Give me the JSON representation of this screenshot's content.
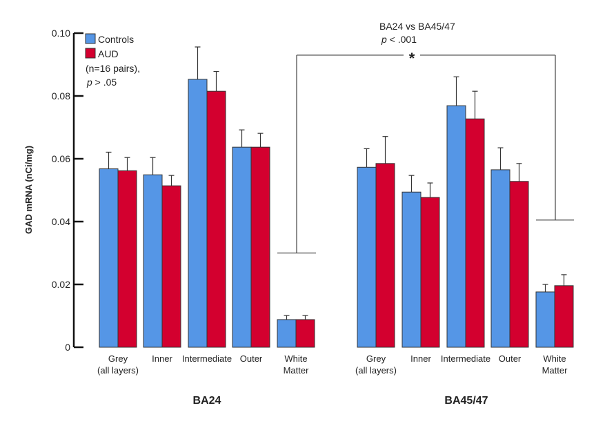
{
  "chart_data": {
    "type": "bar",
    "title": "",
    "xlabel": "",
    "ylabel": "GAD mRNA (nCi/mg)",
    "ylim": [
      0,
      0.1
    ],
    "yticks": [
      0,
      0.02,
      0.04,
      0.06,
      0.08,
      0.1
    ],
    "ytick_labels": [
      "0",
      "0.02",
      "0.04",
      "0.06",
      "0.08",
      "0.10"
    ],
    "grid": false,
    "legend": {
      "placement": "top-left",
      "entries": [
        {
          "name": "Controls",
          "color": "#5596E6"
        },
        {
          "name": "AUD",
          "color": "#D3002F"
        }
      ],
      "note_line1": "(n=16 pairs),",
      "note_p_italic": "p",
      "note_p_rest": " > .05"
    },
    "categories": [
      "Grey\n(all layers)",
      "Inner",
      "Intermediate",
      "Outer",
      "White\nMatter"
    ],
    "category_lines": [
      [
        "Grey",
        "(all layers)"
      ],
      [
        "Inner"
      ],
      [
        "Intermediate"
      ],
      [
        "Outer"
      ],
      [
        "White",
        "Matter"
      ]
    ],
    "groups": [
      {
        "name": "BA24",
        "series": [
          {
            "name": "Controls",
            "values": [
              0.0568,
              0.0549,
              0.0853,
              0.0637,
              0.0088
            ],
            "errors": [
              0.0053,
              0.0055,
              0.0103,
              0.0055,
              0.0013
            ]
          },
          {
            "name": "AUD",
            "values": [
              0.0562,
              0.0514,
              0.0815,
              0.0637,
              0.0088
            ],
            "errors": [
              0.0042,
              0.0033,
              0.0063,
              0.0044,
              0.0013
            ]
          }
        ]
      },
      {
        "name": "BA45/47",
        "series": [
          {
            "name": "Controls",
            "values": [
              0.0573,
              0.0494,
              0.0769,
              0.0565,
              0.0176
            ],
            "errors": [
              0.0059,
              0.0053,
              0.0092,
              0.007,
              0.0024
            ]
          },
          {
            "name": "AUD",
            "values": [
              0.0585,
              0.0477,
              0.0727,
              0.0528,
              0.0196
            ],
            "errors": [
              0.0086,
              0.0046,
              0.0088,
              0.0057,
              0.0035
            ]
          }
        ]
      }
    ],
    "annotations": {
      "comparison_title": "BA24 vs BA45/47",
      "comparison_p_italic": "p",
      "comparison_p_rest": " < .001",
      "significance_marker": "*",
      "bracket_left_level": 0.03,
      "bracket_right_level": 0.0405,
      "bracket_top_level": 0.093
    }
  }
}
